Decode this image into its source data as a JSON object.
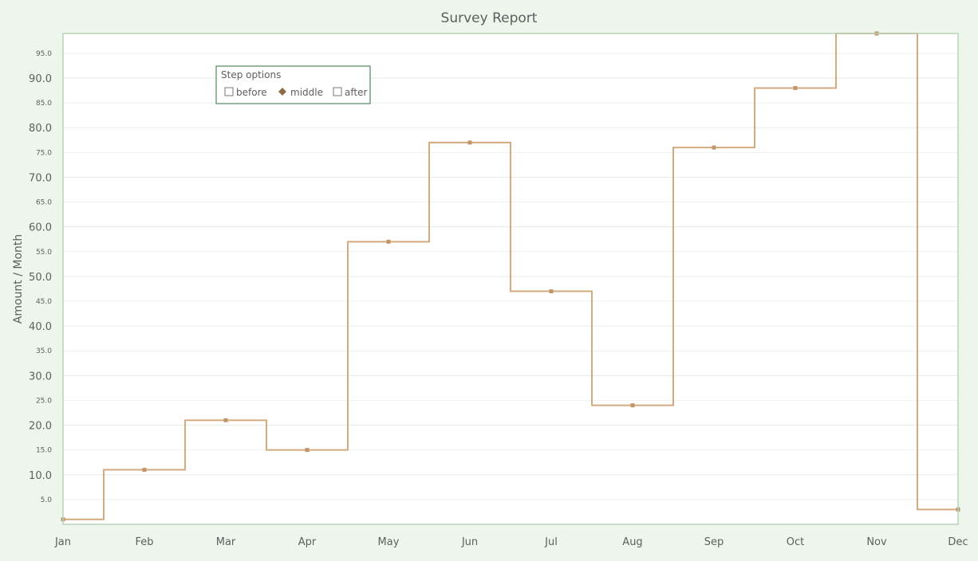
{
  "chart_data": {
    "type": "line",
    "step": "middle",
    "title": "Survey Report",
    "xlabel": "",
    "ylabel": "Amount / Month",
    "categories": [
      "Jan",
      "Feb",
      "Mar",
      "Apr",
      "May",
      "Jun",
      "Jul",
      "Aug",
      "Sep",
      "Oct",
      "Nov",
      "Dec"
    ],
    "series": [
      {
        "values": [
          1,
          11,
          21,
          15,
          57,
          77,
          47,
          24,
          76,
          88,
          99,
          3
        ]
      }
    ],
    "ylim": [
      0,
      99
    ],
    "major_ticks": [
      10,
      20,
      30,
      40,
      50,
      60,
      70,
      80,
      90
    ],
    "major_tick_labels": [
      "10.0",
      "20.0",
      "30.0",
      "40.0",
      "50.0",
      "60.0",
      "70.0",
      "80.0",
      "90.0"
    ],
    "minor_ticks": [
      5,
      15,
      25,
      35,
      45,
      55,
      65,
      75,
      85,
      95
    ],
    "minor_tick_labels": [
      "5.0",
      "15.0",
      "25.0",
      "35.0",
      "45.0",
      "55.0",
      "65.0",
      "75.0",
      "85.0",
      "95.0"
    ],
    "grid": true,
    "legend": {
      "title": "Step options",
      "placement": "top-left",
      "options": [
        {
          "label": "before",
          "selected": false
        },
        {
          "label": "middle",
          "selected": true
        },
        {
          "label": "after",
          "selected": false
        }
      ]
    },
    "colors": {
      "background": "#edf5ed",
      "plot_background": "#ffffff",
      "plot_border": "#b9d3b9",
      "grid": "#e6ece6",
      "line": "#d2aa7d",
      "marker": "#c0956a",
      "text": "#5e5e5e",
      "legend_border": "#5e8f6a",
      "selected_marker": "#8d6b49"
    }
  }
}
